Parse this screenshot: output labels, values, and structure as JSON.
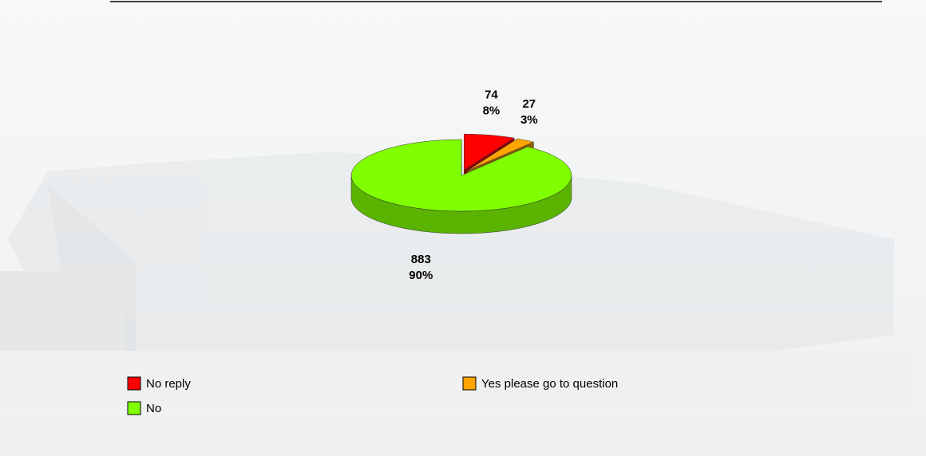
{
  "chart_data": {
    "type": "pie",
    "categories": [
      "No reply",
      "Yes please go to question",
      "No"
    ],
    "values": [
      74,
      27,
      883
    ],
    "percents": [
      8,
      3,
      90
    ],
    "percent_labels": [
      "8%",
      "3%",
      "90%"
    ],
    "colors": [
      "#ff0000",
      "#ffa500",
      "#80ff00"
    ],
    "legend": "bottom"
  }
}
